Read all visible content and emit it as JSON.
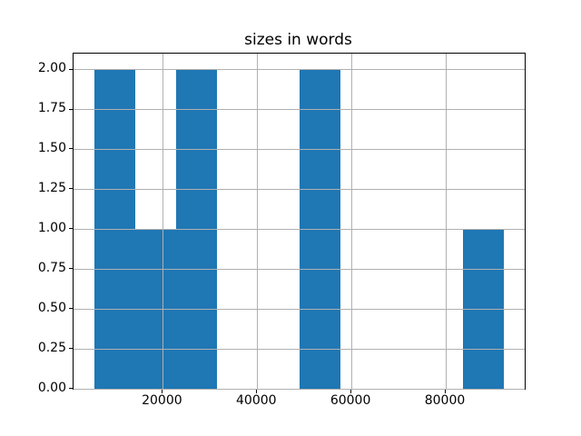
{
  "chart_data": {
    "type": "bar",
    "subtype": "histogram",
    "title": "sizes in words",
    "xlabel": "",
    "ylabel": "",
    "bin_edges": [
      5400,
      14100,
      22800,
      31500,
      40200,
      48900,
      57600,
      66300,
      75000,
      83700,
      92400
    ],
    "counts": [
      2,
      1,
      2,
      0,
      0,
      2,
      0,
      0,
      0,
      1
    ],
    "xlim": [
      1050,
      96750
    ],
    "ylim": [
      0,
      2.1
    ],
    "xticks": {
      "values": [
        20000,
        40000,
        60000,
        80000
      ],
      "labels": [
        "20000",
        "40000",
        "60000",
        "80000"
      ]
    },
    "yticks": {
      "values": [
        0.0,
        0.25,
        0.5,
        0.75,
        1.0,
        1.25,
        1.5,
        1.75,
        2.0
      ],
      "labels": [
        "0.00",
        "0.25",
        "0.50",
        "0.75",
        "1.00",
        "1.25",
        "1.50",
        "1.75",
        "2.00"
      ]
    },
    "grid": true,
    "grid_above_bars": true,
    "legend": null,
    "colors": {
      "bar": "#1f77b4",
      "grid": "#b0b0b0",
      "spine": "#000000",
      "text": "#000000",
      "background": "#ffffff"
    }
  }
}
